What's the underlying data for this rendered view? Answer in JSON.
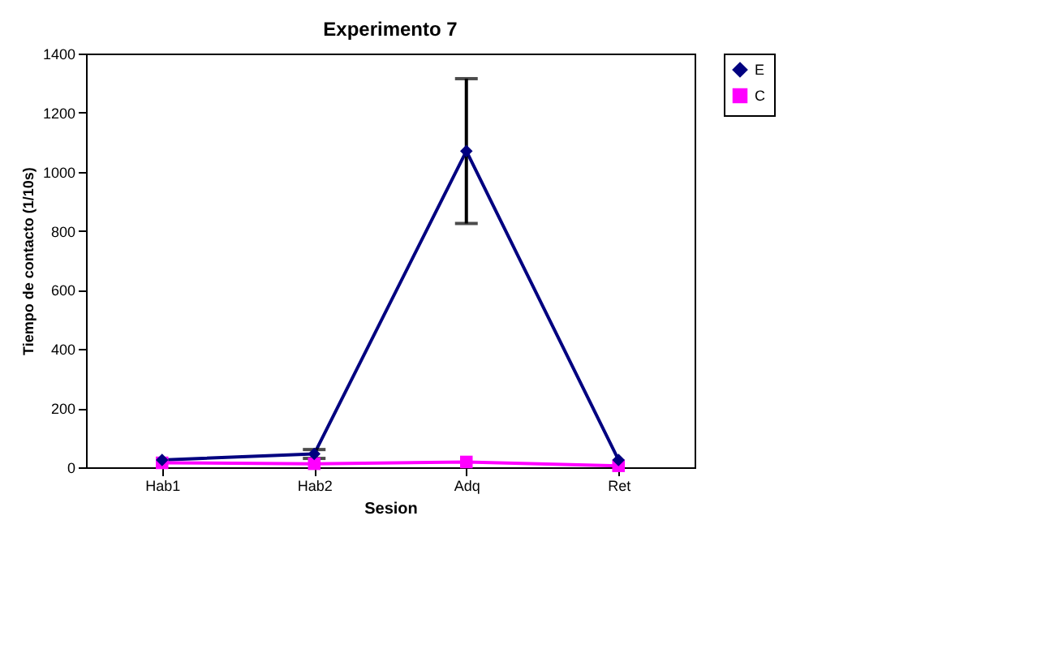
{
  "chart_data": {
    "type": "line",
    "title": "Experimento 7",
    "xlabel": "Sesion",
    "ylabel": "Tiempo de contacto (1/10s)",
    "categories": [
      "Hab1",
      "Hab2",
      "Adq",
      "Ret"
    ],
    "series": [
      {
        "name": "E",
        "color": "#000080",
        "marker": "diamond",
        "values": [
          25,
          45,
          1070,
          25
        ],
        "errors": [
          null,
          15,
          [
            825,
            1315
          ],
          null
        ]
      },
      {
        "name": "C",
        "color": "#ff00ff",
        "marker": "square",
        "values": [
          15,
          12,
          18,
          5
        ]
      }
    ],
    "ylim": [
      0,
      1400
    ],
    "yticks": [
      0,
      200,
      400,
      600,
      800,
      1000,
      1200,
      1400
    ],
    "grid": false,
    "legend": "right",
    "line_style": "solid"
  }
}
